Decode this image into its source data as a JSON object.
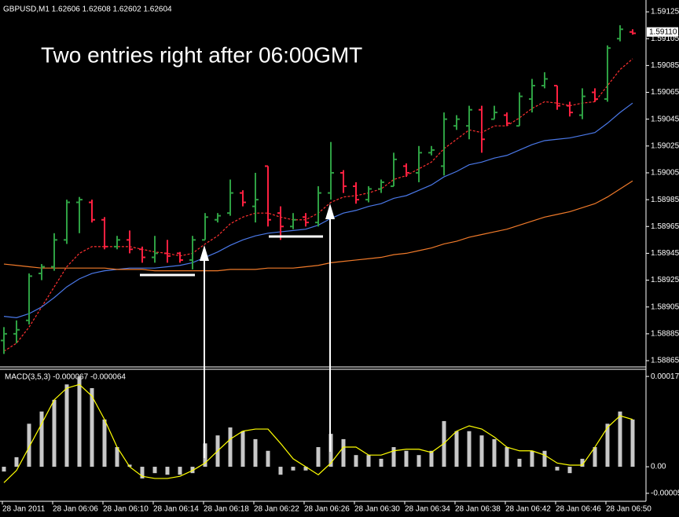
{
  "chart_data": [
    {
      "type": "ohlc",
      "title": "GBPUSD,M1  1.62606 1.62608 1.62602 1.62604",
      "annotation": "Two entries right after 06:00GMT",
      "open": [
        1.5888,
        1.58885,
        1.58895,
        1.5893,
        1.58935,
        1.58955,
        1.58983,
        1.58983,
        1.5897,
        1.5895,
        1.58955,
        1.58948,
        1.58942,
        1.58945,
        1.58945,
        1.5894,
        1.58955,
        1.5897,
        1.58975,
        1.5899,
        1.5898,
        1.5901,
        1.58975,
        1.58965,
        1.58972,
        1.58968,
        1.5899,
        1.59005,
        1.58995,
        1.58985,
        1.58993,
        1.58995,
        1.5901,
        1.59005,
        1.5902,
        1.5901,
        1.5904,
        1.5904,
        1.59052,
        1.59045,
        1.59048,
        1.5904,
        1.5906,
        1.5907,
        1.5907,
        1.59055,
        1.59048,
        1.59065,
        1.5906,
        1.59105,
        1.5911
      ],
      "high": [
        1.5889,
        1.58895,
        1.5893,
        1.58937,
        1.5896,
        1.58985,
        1.58987,
        1.58985,
        1.58972,
        1.58958,
        1.58962,
        1.5895,
        1.58958,
        1.58955,
        1.58946,
        1.58958,
        1.58975,
        1.58975,
        1.59,
        1.58992,
        1.59005,
        1.5901,
        1.5898,
        1.58975,
        1.58975,
        1.58995,
        1.59028,
        1.59007,
        1.58998,
        1.58995,
        1.59,
        1.5902,
        1.59012,
        1.59025,
        1.59025,
        1.5905,
        1.59048,
        1.59055,
        1.59055,
        1.59055,
        1.5905,
        1.59065,
        1.59075,
        1.5908,
        1.5907,
        1.59058,
        1.59068,
        1.59068,
        1.591,
        1.59115,
        1.59112
      ],
      "low": [
        1.5887,
        1.58878,
        1.58892,
        1.58925,
        1.58932,
        1.58952,
        1.5896,
        1.58968,
        1.58948,
        1.58948,
        1.58945,
        1.58938,
        1.58938,
        1.58938,
        1.58938,
        1.58933,
        1.58955,
        1.58968,
        1.58973,
        1.5898,
        1.58968,
        1.58965,
        1.58955,
        1.58963,
        1.58965,
        1.58965,
        1.58985,
        1.5899,
        1.58982,
        1.58983,
        1.5899,
        1.58995,
        1.59002,
        1.58998,
        1.59018,
        1.59003,
        1.59037,
        1.5903,
        1.5902,
        1.59045,
        1.5904,
        1.5904,
        1.5905,
        1.59068,
        1.59052,
        1.59047,
        1.59045,
        1.59058,
        1.59058,
        1.59103,
        1.59108
      ],
      "close": [
        1.58885,
        1.58888,
        1.58928,
        1.58935,
        1.58955,
        1.58983,
        1.58985,
        1.5897,
        1.5895,
        1.58955,
        1.58948,
        1.58942,
        1.58945,
        1.58943,
        1.5894,
        1.58955,
        1.58972,
        1.58973,
        1.5899,
        1.58983,
        1.58985,
        1.5897,
        1.58965,
        1.5897,
        1.58968,
        1.5899,
        1.59005,
        1.58995,
        1.58985,
        1.58993,
        1.58998,
        1.59015,
        1.59005,
        1.5902,
        1.59022,
        1.59045,
        1.59045,
        1.59052,
        1.5903,
        1.5905,
        1.59042,
        1.59062,
        1.5907,
        1.59075,
        1.59055,
        1.5905,
        1.59062,
        1.5906,
        1.59098,
        1.59112,
        1.59109
      ],
      "up_color": "#2ea043",
      "down_color": "#ff2040",
      "series": [
        {
          "color": "#ff3030",
          "dash": true,
          "values": [
            1.58872,
            1.58878,
            1.5889,
            1.58905,
            1.5892,
            1.58935,
            1.58945,
            1.5895,
            1.5895,
            1.5895,
            1.5895,
            1.58948,
            1.58946,
            1.58945,
            1.58943,
            1.58945,
            1.58952,
            1.58958,
            1.58967,
            1.58972,
            1.58975,
            1.58975,
            1.58972,
            1.5897,
            1.5897,
            1.58975,
            1.58983,
            1.58987,
            1.58988,
            1.5899,
            1.58993,
            1.59,
            1.59003,
            1.59008,
            1.59013,
            1.59023,
            1.5903,
            1.59037,
            1.59035,
            1.5904,
            1.5904,
            1.59046,
            1.59053,
            1.59058,
            1.59057,
            1.59055,
            1.59057,
            1.59058,
            1.5907,
            1.59082,
            1.5909
          ]
        },
        {
          "color": "#4a78e8",
          "dash": false,
          "values": [
            1.58898,
            1.58897,
            1.589,
            1.58905,
            1.58912,
            1.5892,
            1.58926,
            1.5893,
            1.58932,
            1.58933,
            1.58934,
            1.58934,
            1.58934,
            1.58935,
            1.58936,
            1.58938,
            1.58942,
            1.58946,
            1.58951,
            1.58955,
            1.58958,
            1.5896,
            1.58961,
            1.58962,
            1.58963,
            1.58966,
            1.58971,
            1.58975,
            1.58977,
            1.5898,
            1.58982,
            1.58986,
            1.58988,
            1.58992,
            1.58996,
            1.59002,
            1.59006,
            1.59011,
            1.59013,
            1.59016,
            1.59018,
            1.59022,
            1.59026,
            1.59029,
            1.5903,
            1.59031,
            1.59033,
            1.59035,
            1.59042,
            1.5905,
            1.59057
          ]
        },
        {
          "color": "#f07a2a",
          "dash": false,
          "values": [
            1.58937,
            1.58936,
            1.58935,
            1.58934,
            1.58934,
            1.58934,
            1.58934,
            1.58934,
            1.58934,
            1.58933,
            1.58933,
            1.58933,
            1.58932,
            1.58932,
            1.58932,
            1.58932,
            1.58932,
            1.58932,
            1.58933,
            1.58933,
            1.58933,
            1.58934,
            1.58934,
            1.58934,
            1.58935,
            1.58936,
            1.58938,
            1.58939,
            1.5894,
            1.58941,
            1.58942,
            1.58944,
            1.58945,
            1.58947,
            1.58949,
            1.58952,
            1.58954,
            1.58957,
            1.58959,
            1.58961,
            1.58963,
            1.58966,
            1.58969,
            1.58972,
            1.58974,
            1.58976,
            1.58979,
            1.58982,
            1.58987,
            1.58993,
            1.58999
          ]
        }
      ],
      "ylim": [
        1.588609,
        1.591309
      ],
      "yticks": [
        1.59125,
        1.59105,
        1.59085,
        1.59065,
        1.59045,
        1.59025,
        1.59005,
        1.58985,
        1.58965,
        1.58945,
        1.58925,
        1.58905,
        1.58885,
        1.58865
      ],
      "last_price": {
        "value": 1.5911,
        "label": "1.59110"
      }
    },
    {
      "type": "macd",
      "title": "MACD(3,5,3) -0.000067 -0.000064",
      "categories": [
        "28 Jan 2011",
        null,
        null,
        null,
        "28 Jan 06:06",
        null,
        null,
        null,
        "28 Jan 06:10",
        null,
        null,
        null,
        "28 Jan 06:14",
        null,
        null,
        null,
        "28 Jan 06:18",
        null,
        null,
        null,
        "28 Jan 06:22",
        null,
        null,
        null,
        "28 Jan 06:26",
        null,
        null,
        null,
        "28 Jan 06:30",
        null,
        null,
        null,
        "28 Jan 06:34",
        null,
        null,
        null,
        "28 Jan 06:38",
        null,
        null,
        null,
        "28 Jan 06:42",
        null,
        null,
        null,
        "28 Jan 06:46",
        null,
        null,
        null,
        "28 Jan 06:50",
        null,
        null
      ],
      "series": [
        {
          "kind": "histogram",
          "color": "#c8c8c8",
          "values": [
            -9e-06,
            1.8e-05,
            8.1e-05,
            0.000104,
            0.000126,
            0.000155,
            0.00017,
            0.000148,
            8.9e-05,
            3.7e-05,
            4e-06,
            -2.2e-05,
            -1.2e-05,
            -1.5e-05,
            -1.5e-05,
            -1.2e-05,
            4.4e-05,
            5.9e-05,
            7.4e-05,
            6.7e-05,
            5.2e-05,
            3e-05,
            -1.5e-05,
            -7e-06,
            -7e-06,
            3.7e-05,
            6.2e-05,
            5.2e-05,
            2.2e-05,
            2.2e-05,
            1.5e-05,
            3.7e-05,
            3e-05,
            2.2e-05,
            3e-05,
            8.6e-05,
            6.7e-05,
            6.7e-05,
            5.9e-05,
            5.2e-05,
            3.7e-05,
            1.5e-05,
            3e-05,
            3e-05,
            -7e-06,
            -1.2e-05,
            1.5e-05,
            3.7e-05,
            8.1e-05,
            0.000104,
            8.9e-05
          ]
        },
        {
          "kind": "line",
          "color": "#ffff00",
          "values": [
            -3e-05,
            -7e-06,
            3.7e-05,
            8.1e-05,
            0.000126,
            0.000148,
            0.000155,
            0.000133,
            8.9e-05,
            3.7e-05,
            0,
            -1.8e-05,
            -2.2e-05,
            -2.2e-05,
            -1.8e-05,
            -7e-06,
            7e-06,
            3e-05,
            5.2e-05,
            6.7e-05,
            7.1e-05,
            7.1e-05,
            4.4e-05,
            1.5e-05,
            0,
            -1.5e-05,
            7e-06,
            3.7e-05,
            3.7e-05,
            2.2e-05,
            2.2e-05,
            3e-05,
            3.3e-05,
            3.3e-05,
            2.7e-05,
            4.4e-05,
            6.7e-05,
            7.7e-05,
            7.1e-05,
            5.6e-05,
            3.7e-05,
            3e-05,
            3e-05,
            2.2e-05,
            7e-06,
            3e-06,
            3e-06,
            3.7e-05,
            7.4e-05,
            9.6e-05,
            8.9e-05
          ]
        }
      ],
      "ylim": [
        -6.5e-05,
        0.000182
      ],
      "yticks": [
        0.00017,
        {
          "value": 0,
          "label": "0.00"
        },
        -5e-05
      ]
    }
  ]
}
